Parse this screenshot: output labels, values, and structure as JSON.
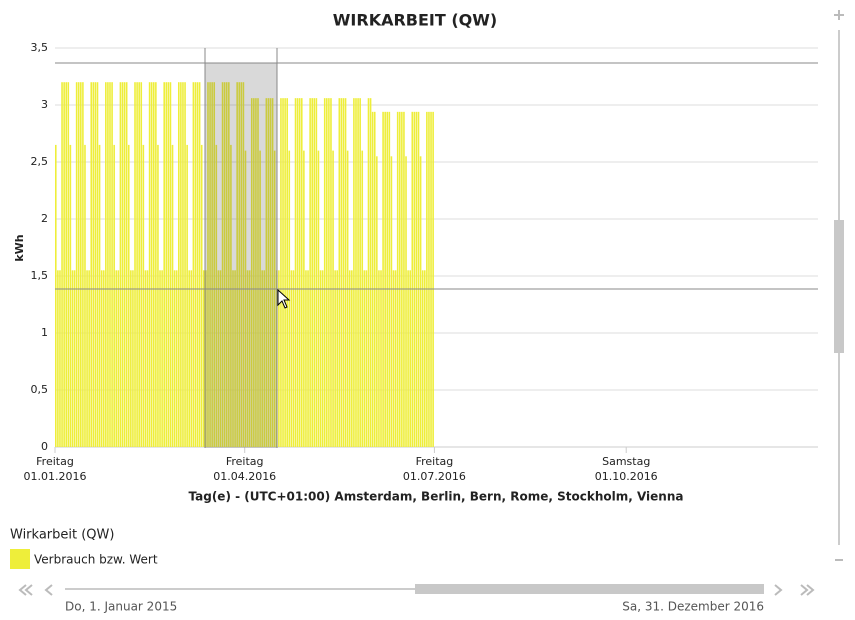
{
  "chart_data": {
    "type": "bar",
    "title": "WIRKARBEIT (QW)",
    "y_label": "kWh",
    "x_label": "Tag(e) - (UTC+01:00) Amsterdam, Berlin, Bern, Rome, Stockholm, Vienna",
    "legend_title": "Wirkarbeit (QW)",
    "legend_position": "bottom-left",
    "grid": true,
    "ylim": [
      0,
      3.5
    ],
    "yticks": [
      0,
      {
        "value": 0.5,
        "label": "0,5"
      },
      1,
      {
        "value": 1.5,
        "label": "1,5"
      },
      2,
      {
        "value": 2.5,
        "label": "2,5"
      },
      3,
      {
        "value": 3.5,
        "label": "3,5"
      }
    ],
    "xlim": [
      "2016-01-01",
      "2016-12-31"
    ],
    "xticks": [
      {
        "value": "2016-01-01",
        "weekday": "Freitag",
        "label": "01.01.2016"
      },
      {
        "value": "2016-04-01",
        "weekday": "Freitag",
        "label": "01.04.2016"
      },
      {
        "value": "2016-07-01",
        "weekday": "Freitag",
        "label": "01.07.2016"
      },
      {
        "value": "2016-10-01",
        "weekday": "Samstag",
        "label": "01.10.2016"
      }
    ],
    "x": [
      "2016-01-01",
      "2016-01-02",
      "2016-01-03",
      "2016-01-04",
      "2016-01-05",
      "2016-01-06",
      "2016-01-07",
      "2016-01-08",
      "2016-01-09",
      "2016-01-10",
      "2016-01-11",
      "2016-01-12",
      "2016-01-13",
      "2016-01-14",
      "2016-01-15",
      "2016-01-16",
      "2016-01-17",
      "2016-01-18",
      "2016-01-19",
      "2016-01-20",
      "2016-01-21",
      "2016-01-22",
      "2016-01-23",
      "2016-01-24",
      "2016-01-25",
      "2016-01-26",
      "2016-01-27",
      "2016-01-28",
      "2016-01-29",
      "2016-01-30",
      "2016-01-31",
      "2016-02-01",
      "2016-02-02",
      "2016-02-03",
      "2016-02-04",
      "2016-02-05",
      "2016-02-06",
      "2016-02-07",
      "2016-02-08",
      "2016-02-09",
      "2016-02-10",
      "2016-02-11",
      "2016-02-12",
      "2016-02-13",
      "2016-02-14",
      "2016-02-15",
      "2016-02-16",
      "2016-02-17",
      "2016-02-18",
      "2016-02-19",
      "2016-02-20",
      "2016-02-21",
      "2016-02-22",
      "2016-02-23",
      "2016-02-24",
      "2016-02-25",
      "2016-02-26",
      "2016-02-27",
      "2016-02-28",
      "2016-02-29",
      "2016-03-01",
      "2016-03-02",
      "2016-03-03",
      "2016-03-04",
      "2016-03-05",
      "2016-03-06",
      "2016-03-07",
      "2016-03-08",
      "2016-03-09",
      "2016-03-10",
      "2016-03-11",
      "2016-03-12",
      "2016-03-13",
      "2016-03-14",
      "2016-03-15",
      "2016-03-16",
      "2016-03-17",
      "2016-03-18",
      "2016-03-19",
      "2016-03-20",
      "2016-03-21",
      "2016-03-22",
      "2016-03-23",
      "2016-03-24",
      "2016-03-25",
      "2016-03-26",
      "2016-03-27",
      "2016-03-28",
      "2016-03-29",
      "2016-03-30",
      "2016-03-31",
      "2016-04-01",
      "2016-04-02",
      "2016-04-03",
      "2016-04-04",
      "2016-04-05",
      "2016-04-06",
      "2016-04-07",
      "2016-04-08",
      "2016-04-09",
      "2016-04-10",
      "2016-04-11",
      "2016-04-12",
      "2016-04-13",
      "2016-04-14",
      "2016-04-15",
      "2016-04-16",
      "2016-04-17",
      "2016-04-18",
      "2016-04-19",
      "2016-04-20",
      "2016-04-21",
      "2016-04-22",
      "2016-04-23",
      "2016-04-24",
      "2016-04-25",
      "2016-04-26",
      "2016-04-27",
      "2016-04-28",
      "2016-04-29",
      "2016-04-30",
      "2016-05-01",
      "2016-05-02",
      "2016-05-03",
      "2016-05-04",
      "2016-05-05",
      "2016-05-06",
      "2016-05-07",
      "2016-05-08",
      "2016-05-09",
      "2016-05-10",
      "2016-05-11",
      "2016-05-12",
      "2016-05-13",
      "2016-05-14",
      "2016-05-15",
      "2016-05-16",
      "2016-05-17",
      "2016-05-18",
      "2016-05-19",
      "2016-05-20",
      "2016-05-21",
      "2016-05-22",
      "2016-05-23",
      "2016-05-24",
      "2016-05-25",
      "2016-05-26",
      "2016-05-27",
      "2016-05-28",
      "2016-05-29",
      "2016-05-30",
      "2016-05-31",
      "2016-06-01",
      "2016-06-02",
      "2016-06-03",
      "2016-06-04",
      "2016-06-05",
      "2016-06-06",
      "2016-06-07",
      "2016-06-08",
      "2016-06-09",
      "2016-06-10",
      "2016-06-11",
      "2016-06-12",
      "2016-06-13",
      "2016-06-14",
      "2016-06-15",
      "2016-06-16",
      "2016-06-17",
      "2016-06-18",
      "2016-06-19",
      "2016-06-20",
      "2016-06-21",
      "2016-06-22",
      "2016-06-23",
      "2016-06-24",
      "2016-06-25",
      "2016-06-26",
      "2016-06-27",
      "2016-06-28",
      "2016-06-29",
      "2016-06-30"
    ],
    "series": [
      {
        "name": "Verbrauch bzw. Wert",
        "color": "#eeee3a",
        "values": [
          2.65,
          1.55,
          1.55,
          3.2,
          3.2,
          3.2,
          3.2,
          2.65,
          1.55,
          1.55,
          3.2,
          3.2,
          3.2,
          3.2,
          2.65,
          1.55,
          1.55,
          3.2,
          3.2,
          3.2,
          3.2,
          2.65,
          1.55,
          1.55,
          3.2,
          3.2,
          3.2,
          3.2,
          2.65,
          1.55,
          1.55,
          3.2,
          3.2,
          3.2,
          3.2,
          2.65,
          1.55,
          1.55,
          3.2,
          3.2,
          3.2,
          3.2,
          2.65,
          1.55,
          1.55,
          3.2,
          3.2,
          3.2,
          3.2,
          2.65,
          1.55,
          1.55,
          3.2,
          3.2,
          3.2,
          3.2,
          2.65,
          1.55,
          1.55,
          3.2,
          3.2,
          3.2,
          3.2,
          2.65,
          1.55,
          1.55,
          3.2,
          3.2,
          3.2,
          3.2,
          2.65,
          1.55,
          1.55,
          3.2,
          3.2,
          3.2,
          3.2,
          2.65,
          1.55,
          1.55,
          3.2,
          3.2,
          3.2,
          3.2,
          2.65,
          1.55,
          1.55,
          3.2,
          3.2,
          3.2,
          3.2,
          2.6,
          1.55,
          1.55,
          3.06,
          3.06,
          3.06,
          3.06,
          2.6,
          1.55,
          1.55,
          3.06,
          3.06,
          3.06,
          3.06,
          2.6,
          1.55,
          1.55,
          3.06,
          3.06,
          3.06,
          3.06,
          2.6,
          1.55,
          1.55,
          3.06,
          3.06,
          3.06,
          3.06,
          2.6,
          1.55,
          1.55,
          3.06,
          3.06,
          3.06,
          3.06,
          2.6,
          1.55,
          1.55,
          3.06,
          3.06,
          3.06,
          3.06,
          2.6,
          1.55,
          1.55,
          3.06,
          3.06,
          3.06,
          3.06,
          2.6,
          1.55,
          1.55,
          3.06,
          3.06,
          3.06,
          3.06,
          2.6,
          1.55,
          1.55,
          3.06,
          3.06,
          2.94,
          2.94,
          2.55,
          1.55,
          1.55,
          2.94,
          2.94,
          2.94,
          2.94,
          2.55,
          1.55,
          1.55,
          2.94,
          2.94,
          2.94,
          2.94,
          2.55,
          1.55,
          1.55,
          2.94,
          2.94,
          2.94,
          2.94,
          2.55,
          1.55,
          1.55,
          2.94,
          2.94,
          2.94,
          2.94
        ]
      }
    ]
  },
  "navigator": {
    "start_label": "Do, 1. Januar 2015",
    "end_label": "Sa, 31. Dezember 2016"
  }
}
